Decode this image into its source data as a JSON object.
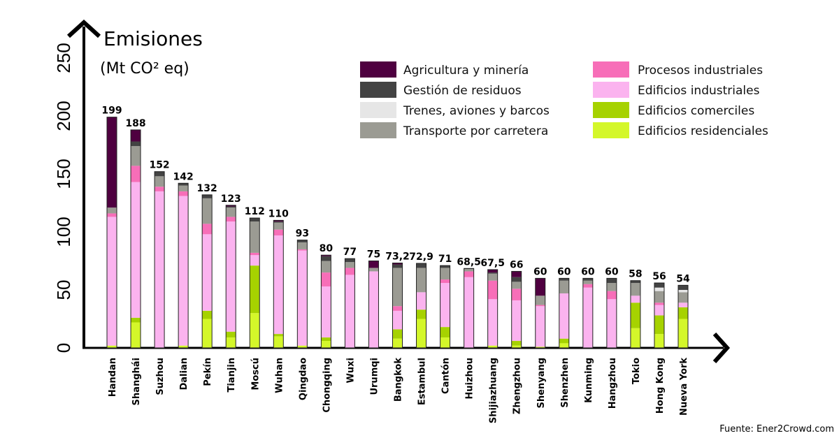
{
  "chart_data": {
    "type": "bar",
    "stacked": true,
    "title": "Emisiones",
    "ylabel": "(Mt CO² eq)",
    "ylim": [
      0,
      250
    ],
    "yticks": [
      0,
      50,
      100,
      150,
      200,
      250
    ],
    "grid": false,
    "legend_position": "top-right",
    "source": "Fuente: Ener2Crowd.com",
    "categories": [
      "Handan",
      "Shanghái",
      "Suzhou",
      "Dalian",
      "Pekín",
      "Tianjin",
      "Moscú",
      "Wuhan",
      "Qingdao",
      "Chongqing",
      "Wuxi",
      "Urumqi",
      "Bangkok",
      "Estambul",
      "Cantón",
      "Huizhou",
      "Shijiazhuang",
      "Zhengzhou",
      "Shenyang",
      "Shenzhen",
      "Kunming",
      "Hangzhou",
      "Tokio",
      "Hong Kong",
      "Nueva York"
    ],
    "totals_labels": [
      "199",
      "188",
      "152",
      "142",
      "132",
      "123",
      "112",
      "110",
      "93",
      "80",
      "77",
      "75",
      "73,2",
      "72,9",
      "71",
      "68,5",
      "67,5",
      "66",
      "60",
      "60",
      "60",
      "60",
      "58",
      "56",
      "54"
    ],
    "series": [
      {
        "name": "Edificios residenciales",
        "color": "#d4f72a",
        "values": [
          2,
          22,
          0,
          2,
          25,
          9,
          30,
          10,
          2,
          6,
          0,
          0,
          8,
          25,
          9,
          0,
          2,
          2,
          1,
          4,
          0,
          0,
          17,
          12,
          25
        ]
      },
      {
        "name": "Edificios comerciles",
        "color": "#a6d200",
        "values": [
          0,
          4,
          0,
          0,
          7,
          5,
          41,
          2,
          0,
          3,
          0,
          0,
          8,
          8,
          9,
          0,
          0,
          4,
          0,
          4,
          0,
          0,
          22,
          16,
          10
        ]
      },
      {
        "name": "Edificios industriales",
        "color": "#fbb3ef",
        "values": [
          111,
          117,
          135,
          129,
          66,
          95,
          9,
          85,
          82,
          44,
          63,
          66,
          16,
          15,
          38,
          61,
          40,
          35,
          35,
          39,
          52,
          42,
          6,
          9,
          4
        ]
      },
      {
        "name": "Procesos industriales",
        "color": "#f76eb8",
        "values": [
          3,
          14,
          4,
          4,
          9,
          4,
          2,
          5,
          1,
          12,
          6,
          0,
          4,
          0,
          3,
          5,
          16,
          10,
          1,
          0,
          3,
          7,
          0,
          2,
          0
        ]
      },
      {
        "name": "Transporte por carretera",
        "color": "#9b9b93",
        "values": [
          5,
          17,
          9,
          5,
          22,
          8,
          27,
          6,
          6,
          10,
          5,
          3,
          33,
          21,
          10,
          2,
          6,
          6,
          8,
          11,
          3,
          7,
          11,
          10,
          9
        ]
      },
      {
        "name": "Trenes, aviones y barcos",
        "color": "#e6e6e6",
        "values": [
          0,
          0,
          0,
          0,
          0,
          0,
          0,
          0,
          0,
          0,
          0,
          0,
          0,
          0,
          0,
          0,
          0,
          0,
          0,
          0,
          0,
          0,
          0,
          3,
          2
        ]
      },
      {
        "name": "Gestión de residuos",
        "color": "#434343",
        "values": [
          0,
          4,
          4,
          2,
          3,
          1,
          3,
          1,
          2,
          4,
          3,
          0,
          3,
          3.9,
          2,
          0.5,
          1,
          4,
          0,
          2,
          2,
          4,
          2,
          4,
          4
        ]
      },
      {
        "name": "Agricultura y minería",
        "color": "#4f0040",
        "values": [
          78,
          10,
          0,
          0,
          0,
          1,
          0,
          1,
          0,
          1,
          0,
          6,
          1.2,
          0,
          0,
          0,
          2.5,
          5,
          15,
          0,
          0,
          0,
          0,
          0,
          0
        ]
      }
    ],
    "legend_order": [
      "Agricultura y minería",
      "Gestión de residuos",
      "Trenes, aviones y barcos",
      "Transporte por carretera",
      "Procesos industriales",
      "Edificios industriales",
      "Edificios comerciles",
      "Edificios residenciales"
    ]
  }
}
